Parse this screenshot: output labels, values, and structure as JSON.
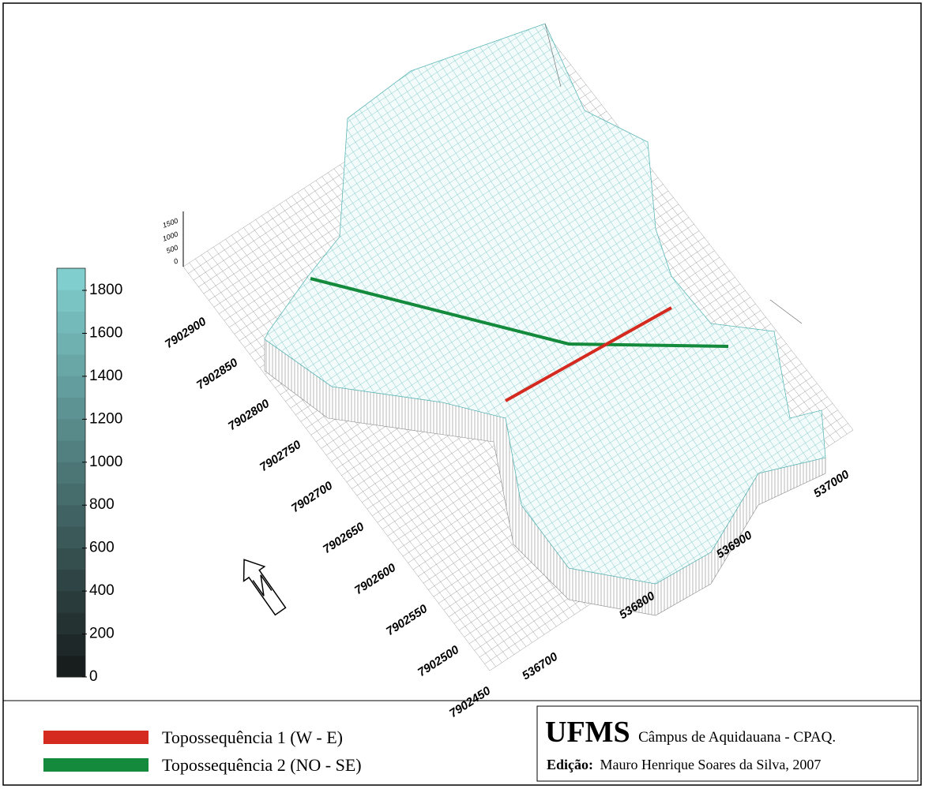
{
  "colorbar": {
    "ticks": [
      "1800",
      "1600",
      "1400",
      "1200",
      "1000",
      "800",
      "600",
      "400",
      "200",
      "0"
    ]
  },
  "axes": {
    "z_labels": [
      "1500",
      "1000",
      "500",
      "0"
    ],
    "y_labels": [
      "7902900",
      "7902850",
      "7902800",
      "7902750",
      "7902700",
      "7902650",
      "7902600",
      "7902550",
      "7902500",
      "7902450"
    ],
    "x_labels": [
      "536700",
      "536800",
      "536900",
      "537000"
    ]
  },
  "legend": [
    {
      "label": "Topossequência 1 (W - E)",
      "color": "#d42a20"
    },
    {
      "label": "Topossequência 2 (NO - SE)",
      "color": "#138a3c"
    }
  ],
  "credit": {
    "org": "UFMS",
    "campus": "Câmpus de Aquidauana - CPAQ.",
    "edition_label": "Edição:",
    "edition_text": "Mauro Henrique Soares da Silva, 2007"
  }
}
